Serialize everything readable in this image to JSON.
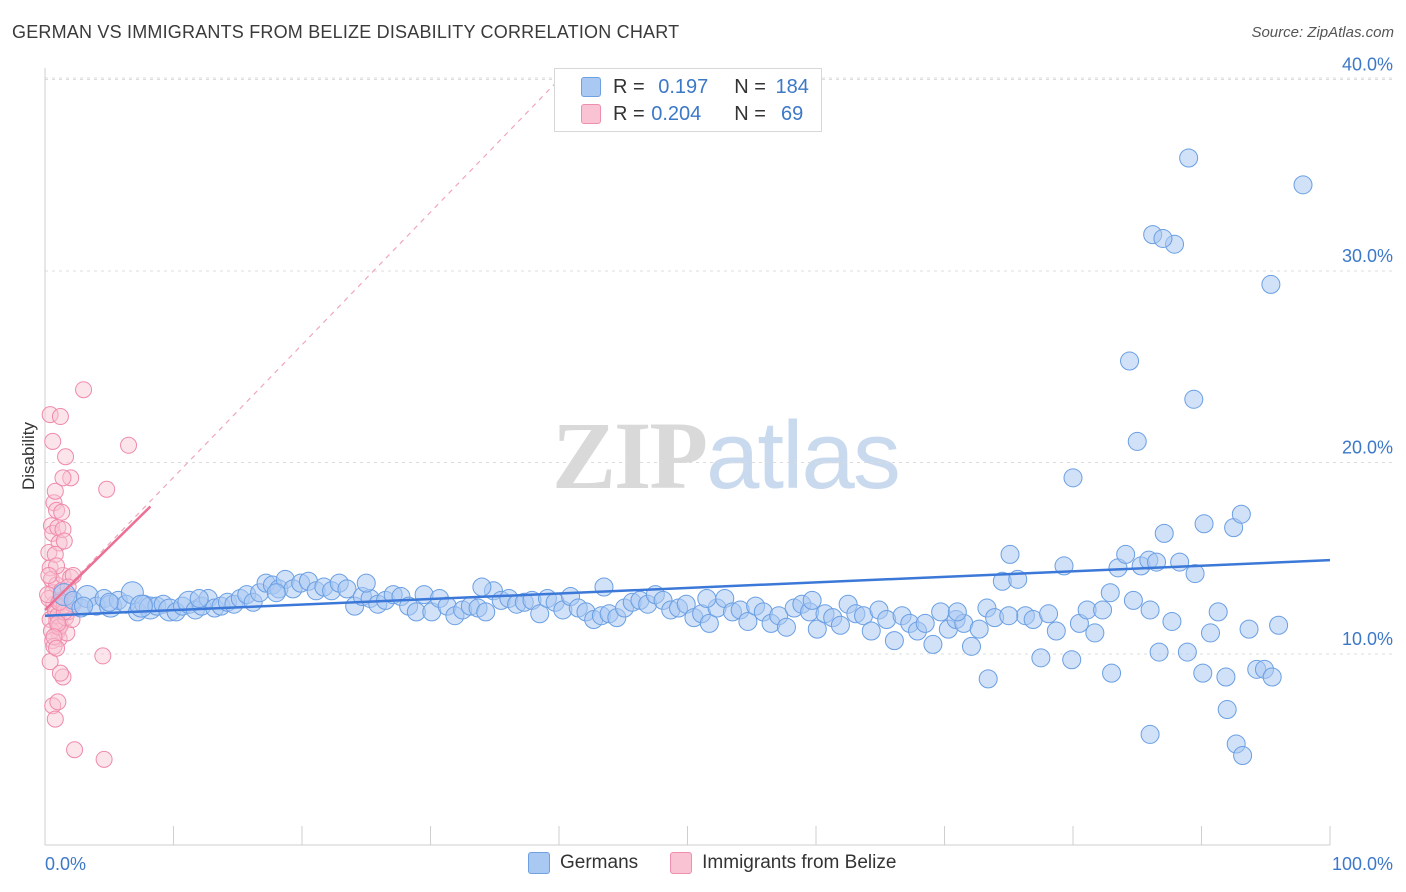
{
  "title": "GERMAN VS IMMIGRANTS FROM BELIZE DISABILITY CORRELATION CHART",
  "source": "Source: ZipAtlas.com",
  "watermark": {
    "zip": "ZIP",
    "atlas": "atlas"
  },
  "legend": {
    "rows": [
      {
        "r_label": "R = ",
        "r_value": "0.197",
        "n_label": "N = ",
        "n_value": "184",
        "color": "#a9c8f2",
        "border": "#6fa0e0"
      },
      {
        "r_label": "R = ",
        "r_value": "0.204",
        "n_label": "N = ",
        "n_value": " 69",
        "color": "#f9c3d3",
        "border": "#ee8fad"
      }
    ]
  },
  "bottom_legend": [
    {
      "label": "Germans",
      "color": "#a9c8f2",
      "border": "#6fa0e0"
    },
    {
      "label": "Immigrants from Belize",
      "color": "#f9c3d3",
      "border": "#ee8fad"
    }
  ],
  "chart_data": {
    "type": "scatter",
    "title": "GERMAN VS IMMIGRANTS FROM BELIZE DISABILITY CORRELATION CHART",
    "xlabel": "",
    "ylabel": "Disability",
    "xlim": [
      0,
      100
    ],
    "ylim": [
      0,
      41
    ],
    "x_tick_labels": [
      "0.0%",
      "100.0%"
    ],
    "y_ticks": [
      10,
      20,
      30,
      40
    ],
    "y_tick_labels": [
      "10.0%",
      "20.0%",
      "30.0%",
      "40.0%"
    ],
    "grid": true,
    "colors": {
      "germans": "#3c78d8",
      "belize": "#ec6f95"
    },
    "series": [
      {
        "name": "Germans",
        "trend": {
          "x": [
            0,
            100
          ],
          "y": [
            12.0,
            14.9
          ]
        },
        "points": [
          [
            1.5,
            13.1
          ],
          [
            2.2,
            12.8
          ],
          [
            2.8,
            12.4
          ],
          [
            3.3,
            13.0
          ],
          [
            4.0,
            12.5
          ],
          [
            4.6,
            12.9
          ],
          [
            5.1,
            12.5
          ],
          [
            5.7,
            12.8
          ],
          [
            6.3,
            12.6
          ],
          [
            6.8,
            13.2
          ],
          [
            7.2,
            12.2
          ],
          [
            7.7,
            12.6
          ],
          [
            8.2,
            12.4
          ],
          [
            8.7,
            12.5
          ],
          [
            9.2,
            12.6
          ],
          [
            9.7,
            12.3
          ],
          [
            10.2,
            12.2
          ],
          [
            10.7,
            12.5
          ],
          [
            11.2,
            12.7
          ],
          [
            11.7,
            12.3
          ],
          [
            12.2,
            12.5
          ],
          [
            12.7,
            12.9
          ],
          [
            13.2,
            12.4
          ],
          [
            13.7,
            12.5
          ],
          [
            14.2,
            12.7
          ],
          [
            14.7,
            12.6
          ],
          [
            15.2,
            12.9
          ],
          [
            15.7,
            13.1
          ],
          [
            16.2,
            12.7
          ],
          [
            16.7,
            13.2
          ],
          [
            17.2,
            13.7
          ],
          [
            17.7,
            13.6
          ],
          [
            18.2,
            13.4
          ],
          [
            18.7,
            13.9
          ],
          [
            19.3,
            13.4
          ],
          [
            19.9,
            13.7
          ],
          [
            20.5,
            13.8
          ],
          [
            21.1,
            13.3
          ],
          [
            21.7,
            13.5
          ],
          [
            22.3,
            13.3
          ],
          [
            22.9,
            13.7
          ],
          [
            23.5,
            13.4
          ],
          [
            24.1,
            12.5
          ],
          [
            24.7,
            13.0
          ],
          [
            25.3,
            12.9
          ],
          [
            25.9,
            12.6
          ],
          [
            26.5,
            12.8
          ],
          [
            27.1,
            13.1
          ],
          [
            27.7,
            13.0
          ],
          [
            28.3,
            12.5
          ],
          [
            28.9,
            12.2
          ],
          [
            29.5,
            13.1
          ],
          [
            30.1,
            12.2
          ],
          [
            30.7,
            12.9
          ],
          [
            31.3,
            12.5
          ],
          [
            31.9,
            12.0
          ],
          [
            32.5,
            12.3
          ],
          [
            33.1,
            12.5
          ],
          [
            33.7,
            12.4
          ],
          [
            34.3,
            12.2
          ],
          [
            34.9,
            13.3
          ],
          [
            35.5,
            12.8
          ],
          [
            36.1,
            12.9
          ],
          [
            36.7,
            12.6
          ],
          [
            37.3,
            12.7
          ],
          [
            37.9,
            12.8
          ],
          [
            38.5,
            12.1
          ],
          [
            39.1,
            12.9
          ],
          [
            39.7,
            12.7
          ],
          [
            40.3,
            12.3
          ],
          [
            40.9,
            13.0
          ],
          [
            41.5,
            12.4
          ],
          [
            42.1,
            12.2
          ],
          [
            42.7,
            11.8
          ],
          [
            43.3,
            12.0
          ],
          [
            43.9,
            12.1
          ],
          [
            44.5,
            11.9
          ],
          [
            45.1,
            12.4
          ],
          [
            45.7,
            12.7
          ],
          [
            46.3,
            12.8
          ],
          [
            46.9,
            12.6
          ],
          [
            47.5,
            13.1
          ],
          [
            48.1,
            12.8
          ],
          [
            48.7,
            12.3
          ],
          [
            49.3,
            12.4
          ],
          [
            49.9,
            12.6
          ],
          [
            50.5,
            11.9
          ],
          [
            51.1,
            12.1
          ],
          [
            51.7,
            11.6
          ],
          [
            52.3,
            12.4
          ],
          [
            52.9,
            12.9
          ],
          [
            53.5,
            12.2
          ],
          [
            54.1,
            12.3
          ],
          [
            54.7,
            11.7
          ],
          [
            55.3,
            12.5
          ],
          [
            55.9,
            12.2
          ],
          [
            56.5,
            11.6
          ],
          [
            57.1,
            12.0
          ],
          [
            57.7,
            11.4
          ],
          [
            58.3,
            12.4
          ],
          [
            58.9,
            12.6
          ],
          [
            59.5,
            12.2
          ],
          [
            60.1,
            11.3
          ],
          [
            60.7,
            12.1
          ],
          [
            61.3,
            11.9
          ],
          [
            61.9,
            11.5
          ],
          [
            62.5,
            12.6
          ],
          [
            63.1,
            12.1
          ],
          [
            63.7,
            12.0
          ],
          [
            64.3,
            11.2
          ],
          [
            64.9,
            12.3
          ],
          [
            65.5,
            11.8
          ],
          [
            66.1,
            10.7
          ],
          [
            66.7,
            12.0
          ],
          [
            67.3,
            11.6
          ],
          [
            67.9,
            11.2
          ],
          [
            68.5,
            11.6
          ],
          [
            69.1,
            10.5
          ],
          [
            69.7,
            12.2
          ],
          [
            70.3,
            11.3
          ],
          [
            70.9,
            11.8
          ],
          [
            71.5,
            11.6
          ],
          [
            72.1,
            10.4
          ],
          [
            72.7,
            11.3
          ],
          [
            73.3,
            12.4
          ],
          [
            73.9,
            11.9
          ],
          [
            74.5,
            13.8
          ],
          [
            75.1,
            15.2
          ],
          [
            75.7,
            13.9
          ],
          [
            76.3,
            12.0
          ],
          [
            76.9,
            11.8
          ],
          [
            77.5,
            9.8
          ],
          [
            78.1,
            12.1
          ],
          [
            78.7,
            11.2
          ],
          [
            79.3,
            14.6
          ],
          [
            79.9,
            9.7
          ],
          [
            80.5,
            11.6
          ],
          [
            81.1,
            12.3
          ],
          [
            81.7,
            11.1
          ],
          [
            82.3,
            12.3
          ],
          [
            82.9,
            13.2
          ],
          [
            83.5,
            14.5
          ],
          [
            84.1,
            15.2
          ],
          [
            84.7,
            12.8
          ],
          [
            85.3,
            14.6
          ],
          [
            85.9,
            14.9
          ],
          [
            86.5,
            14.8
          ],
          [
            87.1,
            16.3
          ],
          [
            87.7,
            11.7
          ],
          [
            88.3,
            14.8
          ],
          [
            88.9,
            10.1
          ],
          [
            89.5,
            14.2
          ],
          [
            90.1,
            9.0
          ],
          [
            90.7,
            11.1
          ],
          [
            91.3,
            12.2
          ],
          [
            91.9,
            8.8
          ],
          [
            92.5,
            16.6
          ],
          [
            93.1,
            17.3
          ],
          [
            93.7,
            11.3
          ],
          [
            94.3,
            9.2
          ],
          [
            94.9,
            9.2
          ],
          [
            95.5,
            8.8
          ],
          [
            83.0,
            9.0
          ],
          [
            86.0,
            5.8
          ],
          [
            92.0,
            7.1
          ],
          [
            92.7,
            5.3
          ],
          [
            93.2,
            4.7
          ],
          [
            73.4,
            8.7
          ],
          [
            75.0,
            12.0
          ],
          [
            71.0,
            12.2
          ],
          [
            59.7,
            12.8
          ],
          [
            51.5,
            12.9
          ],
          [
            43.5,
            13.5
          ],
          [
            34.0,
            13.5
          ],
          [
            25.0,
            13.7
          ],
          [
            18.0,
            13.2
          ],
          [
            12.0,
            12.9
          ],
          [
            7.5,
            12.5
          ],
          [
            5.0,
            12.7
          ],
          [
            3.0,
            12.5
          ],
          [
            80.0,
            19.2
          ],
          [
            85.0,
            21.1
          ],
          [
            84.4,
            25.3
          ],
          [
            89.4,
            23.3
          ],
          [
            96.0,
            11.5
          ],
          [
            90.2,
            16.8
          ],
          [
            86.2,
            31.9
          ],
          [
            87.9,
            31.4
          ],
          [
            95.4,
            29.3
          ],
          [
            86.0,
            12.3
          ],
          [
            86.7,
            10.1
          ],
          [
            87.0,
            31.7
          ],
          [
            89.0,
            35.9
          ],
          [
            97.9,
            34.5
          ]
        ]
      },
      {
        "name": "Immigrants from Belize",
        "trend": {
          "x": [
            0,
            8.2
          ],
          "y": [
            12.3,
            17.7
          ]
        },
        "trend_extended": {
          "x": [
            0,
            40
          ],
          "y": [
            12.3,
            40.0
          ]
        },
        "points": [
          [
            0.3,
            15.3
          ],
          [
            0.4,
            14.5
          ],
          [
            0.5,
            13.9
          ],
          [
            0.6,
            13.2
          ],
          [
            0.7,
            12.6
          ],
          [
            0.8,
            12.1
          ],
          [
            0.9,
            11.7
          ],
          [
            1.0,
            11.2
          ],
          [
            1.1,
            10.8
          ],
          [
            1.2,
            11.5
          ],
          [
            0.3,
            12.9
          ],
          [
            0.4,
            11.8
          ],
          [
            0.5,
            11.2
          ],
          [
            0.6,
            10.7
          ],
          [
            0.7,
            10.4
          ],
          [
            0.8,
            12.3
          ],
          [
            0.9,
            13.6
          ],
          [
            1.0,
            12.0
          ],
          [
            1.1,
            11.4
          ],
          [
            1.2,
            12.8
          ],
          [
            1.3,
            13.3
          ],
          [
            1.4,
            14.1
          ],
          [
            1.5,
            12.5
          ],
          [
            1.6,
            11.9
          ],
          [
            1.7,
            11.1
          ],
          [
            1.8,
            12.2
          ],
          [
            1.9,
            13.0
          ],
          [
            2.0,
            14.0
          ],
          [
            2.1,
            11.8
          ],
          [
            2.2,
            12.6
          ],
          [
            0.5,
            16.7
          ],
          [
            0.6,
            16.3
          ],
          [
            0.7,
            17.9
          ],
          [
            0.8,
            18.5
          ],
          [
            0.9,
            17.5
          ],
          [
            1.0,
            16.6
          ],
          [
            1.1,
            15.8
          ],
          [
            1.3,
            17.4
          ],
          [
            1.4,
            16.5
          ],
          [
            1.5,
            15.9
          ],
          [
            0.4,
            22.5
          ],
          [
            0.6,
            21.1
          ],
          [
            1.2,
            22.4
          ],
          [
            1.6,
            20.3
          ],
          [
            2.0,
            19.2
          ],
          [
            1.4,
            19.2
          ],
          [
            0.8,
            15.2
          ],
          [
            0.9,
            14.6
          ],
          [
            0.3,
            14.1
          ],
          [
            0.2,
            13.1
          ],
          [
            0.4,
            9.6
          ],
          [
            0.6,
            7.3
          ],
          [
            0.8,
            6.6
          ],
          [
            1.0,
            7.5
          ],
          [
            1.4,
            8.8
          ],
          [
            1.2,
            9.0
          ],
          [
            2.3,
            5.0
          ],
          [
            4.6,
            4.5
          ],
          [
            4.5,
            9.9
          ],
          [
            4.8,
            18.6
          ],
          [
            6.5,
            20.9
          ],
          [
            3.0,
            23.8
          ],
          [
            2.2,
            14.1
          ],
          [
            1.8,
            13.5
          ],
          [
            1.5,
            12.2
          ],
          [
            1.0,
            11.6
          ],
          [
            0.7,
            10.9
          ],
          [
            0.9,
            10.3
          ],
          [
            1.1,
            12.7
          ]
        ]
      }
    ]
  }
}
